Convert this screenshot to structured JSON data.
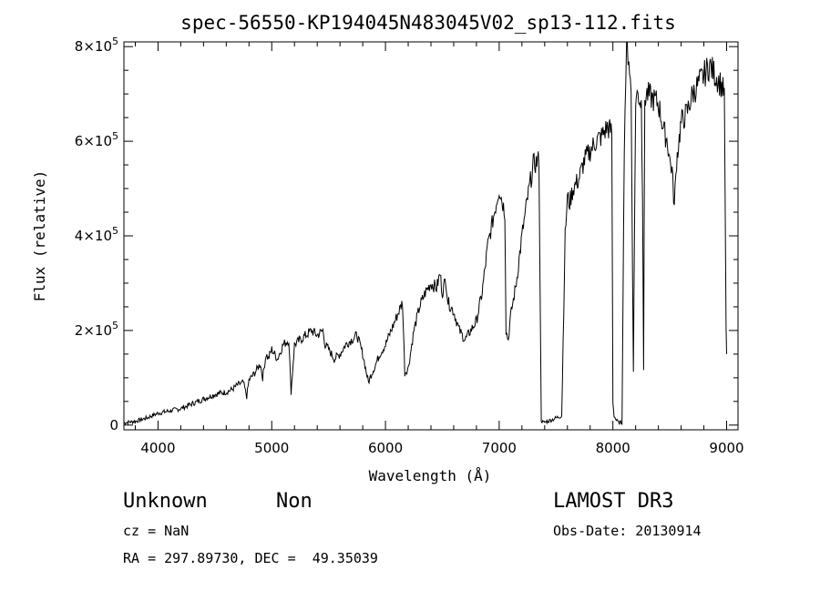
{
  "chart_data": {
    "type": "line",
    "title": "spec-56550-KP194045N483045V02_sp13-112.fits",
    "xlabel": "Wavelength (Å)",
    "ylabel": "Flux (relative)",
    "xlim": [
      3700,
      9100
    ],
    "ylim": [
      -10000,
      810000
    ],
    "x_ticks": [
      4000,
      5000,
      6000,
      7000,
      8000,
      9000
    ],
    "x_tick_labels": [
      "4000",
      "5000",
      "6000",
      "7000",
      "8000",
      "9000"
    ],
    "y_ticks": [
      0,
      200000,
      400000,
      600000,
      800000
    ],
    "y_tick_mantissa": [
      "0",
      "2",
      "4",
      "6",
      "8"
    ],
    "y_tick_exp_base": "×10",
    "y_tick_exponent": "5",
    "series": [
      {
        "values_note": "",
        "x": [
          3700,
          3800,
          3900,
          4000,
          4100,
          4200,
          4250,
          4300,
          4400,
          4500,
          4600,
          4650,
          4700,
          4750,
          4780,
          4800,
          4850,
          4900,
          4920,
          4950,
          4970,
          5000,
          5050,
          5100,
          5150,
          5170,
          5200,
          5250,
          5300,
          5350,
          5400,
          5450,
          5470,
          5500,
          5550,
          5600,
          5650,
          5700,
          5750,
          5800,
          5850,
          5880,
          5900,
          5950,
          6000,
          6050,
          6100,
          6150,
          6170,
          6200,
          6250,
          6300,
          6350,
          6400,
          6450,
          6480,
          6500,
          6530,
          6550,
          6600,
          6650,
          6700,
          6750,
          6800,
          6850,
          6900,
          6950,
          7000,
          7050,
          7060,
          7080,
          7100,
          7150,
          7200,
          7250,
          7300,
          7350,
          7370,
          7390,
          7400,
          7450,
          7500,
          7550,
          7580,
          7600,
          7620,
          7650,
          7700,
          7750,
          7800,
          7850,
          7900,
          7950,
          7990,
          8000,
          8010,
          8030,
          8050,
          8080,
          8100,
          8120,
          8140,
          8160,
          8180,
          8200,
          8220,
          8250,
          8260,
          8270,
          8280,
          8300,
          8350,
          8400,
          8450,
          8480,
          8500,
          8520,
          8540,
          8560,
          8600,
          8650,
          8700,
          8750,
          8800,
          8850,
          8900,
          8950,
          8980,
          8995,
          9000
        ],
        "y": [
          5000,
          8000,
          15000,
          25000,
          30000,
          35000,
          40000,
          45000,
          55000,
          65000,
          70000,
          75000,
          85000,
          90000,
          60000,
          95000,
          110000,
          130000,
          100000,
          150000,
          140000,
          160000,
          140000,
          170000,
          180000,
          70000,
          170000,
          180000,
          190000,
          200000,
          190000,
          200000,
          170000,
          160000,
          140000,
          150000,
          170000,
          180000,
          190000,
          150000,
          90000,
          110000,
          120000,
          150000,
          170000,
          200000,
          230000,
          260000,
          110000,
          120000,
          200000,
          250000,
          280000,
          300000,
          290000,
          320000,
          280000,
          310000,
          260000,
          240000,
          200000,
          180000,
          200000,
          220000,
          280000,
          380000,
          440000,
          500000,
          450000,
          200000,
          180000,
          230000,
          300000,
          400000,
          480000,
          550000,
          560000,
          10000,
          5000,
          6000,
          10000,
          15000,
          20000,
          400000,
          480000,
          470000,
          500000,
          520000,
          560000,
          580000,
          600000,
          610000,
          630000,
          620000,
          50000,
          20000,
          10000,
          5000,
          5000,
          600000,
          800000,
          780000,
          700000,
          120000,
          690000,
          700000,
          680000,
          500000,
          120000,
          690000,
          700000,
          690000,
          680000,
          620000,
          600000,
          560000,
          540000,
          460000,
          560000,
          640000,
          660000,
          700000,
          720000,
          740000,
          760000,
          740000,
          720000,
          700000,
          200000,
          150000
        ]
      }
    ]
  },
  "info": {
    "class": "Unknown",
    "subclass": "Non",
    "survey": "LAMOST DR3",
    "cz": "cz = NaN",
    "obs_date": "Obs-Date: 20130914",
    "coords": "RA = 297.89730, DEC =  49.35039"
  }
}
